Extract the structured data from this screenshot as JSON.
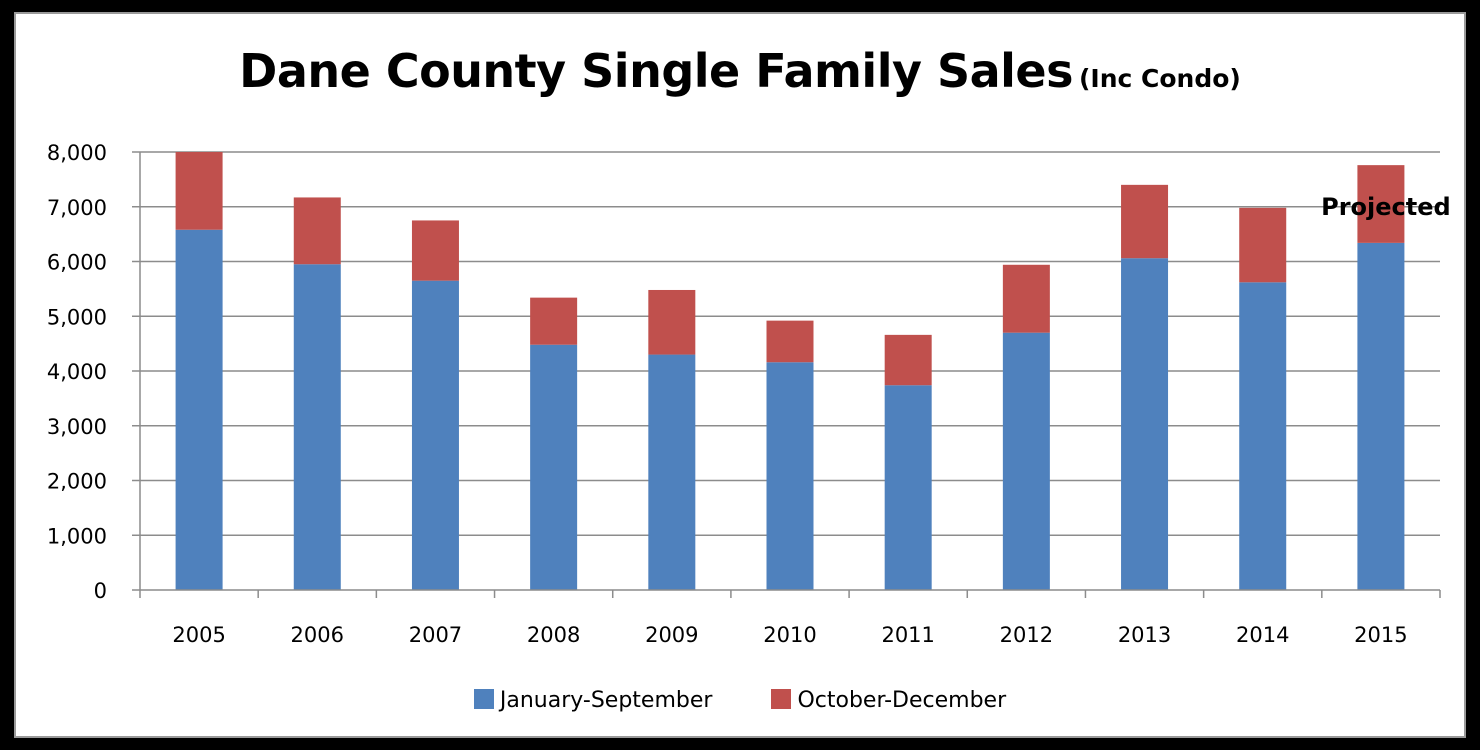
{
  "chart_data": {
    "type": "bar",
    "stacked": true,
    "title": "Dane County Single Family Sales",
    "subtitle": "(Inc Condo)",
    "xlabel": "",
    "ylabel": "",
    "categories": [
      "2005",
      "2006",
      "2007",
      "2008",
      "2009",
      "2010",
      "2011",
      "2012",
      "2013",
      "2014",
      "2015"
    ],
    "series": [
      {
        "name": "January-September",
        "color": "#4f81bd",
        "values": [
          6580,
          5950,
          5650,
          4480,
          4300,
          4160,
          3740,
          4700,
          6060,
          5620,
          6340
        ]
      },
      {
        "name": "October-December",
        "color": "#c0504d",
        "values": [
          1420,
          1220,
          1100,
          860,
          1180,
          760,
          920,
          1240,
          1340,
          1360,
          1420
        ]
      }
    ],
    "ylim": [
      0,
      8000
    ],
    "yticks": [
      0,
      1000,
      2000,
      3000,
      4000,
      5000,
      6000,
      7000,
      8000
    ],
    "ytick_labels": [
      "0",
      "1,000",
      "2,000",
      "3,000",
      "4,000",
      "5,000",
      "6,000",
      "7,000",
      "8,000"
    ],
    "grid": true,
    "legend_position": "bottom",
    "annotations": [
      {
        "text": "Projected",
        "category": "2015",
        "y": 7000
      }
    ]
  }
}
